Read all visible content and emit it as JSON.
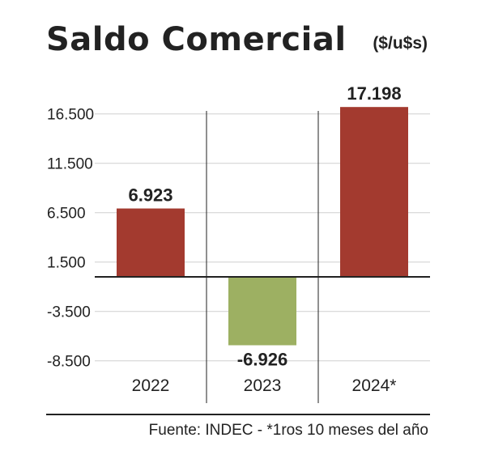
{
  "header": {
    "title": "Saldo Comercial",
    "units": "($/u$s)"
  },
  "footer": {
    "source": "Fuente: INDEC - *1ros 10 meses del año"
  },
  "colors": {
    "positive": "#a33a2f",
    "negative": "#9db062",
    "grid": "#cfcfcf",
    "axis": "#222222"
  },
  "chart_data": {
    "type": "bar",
    "title": "Saldo Comercial",
    "ylabel": "($/u$s)",
    "categories": [
      "2022",
      "2023",
      "2024*"
    ],
    "values": [
      6923,
      -6926,
      17198
    ],
    "value_labels": [
      "6.923",
      "-6.926",
      "17.198"
    ],
    "yticks": [
      16500,
      11500,
      6500,
      1500,
      -3500,
      -8500
    ],
    "ytick_labels": [
      "16.500",
      "11.500",
      "6.500",
      "1.500",
      "-3.500",
      "-8.500"
    ],
    "ylim": [
      -10000,
      19800
    ],
    "grid": true,
    "legend": "none"
  }
}
